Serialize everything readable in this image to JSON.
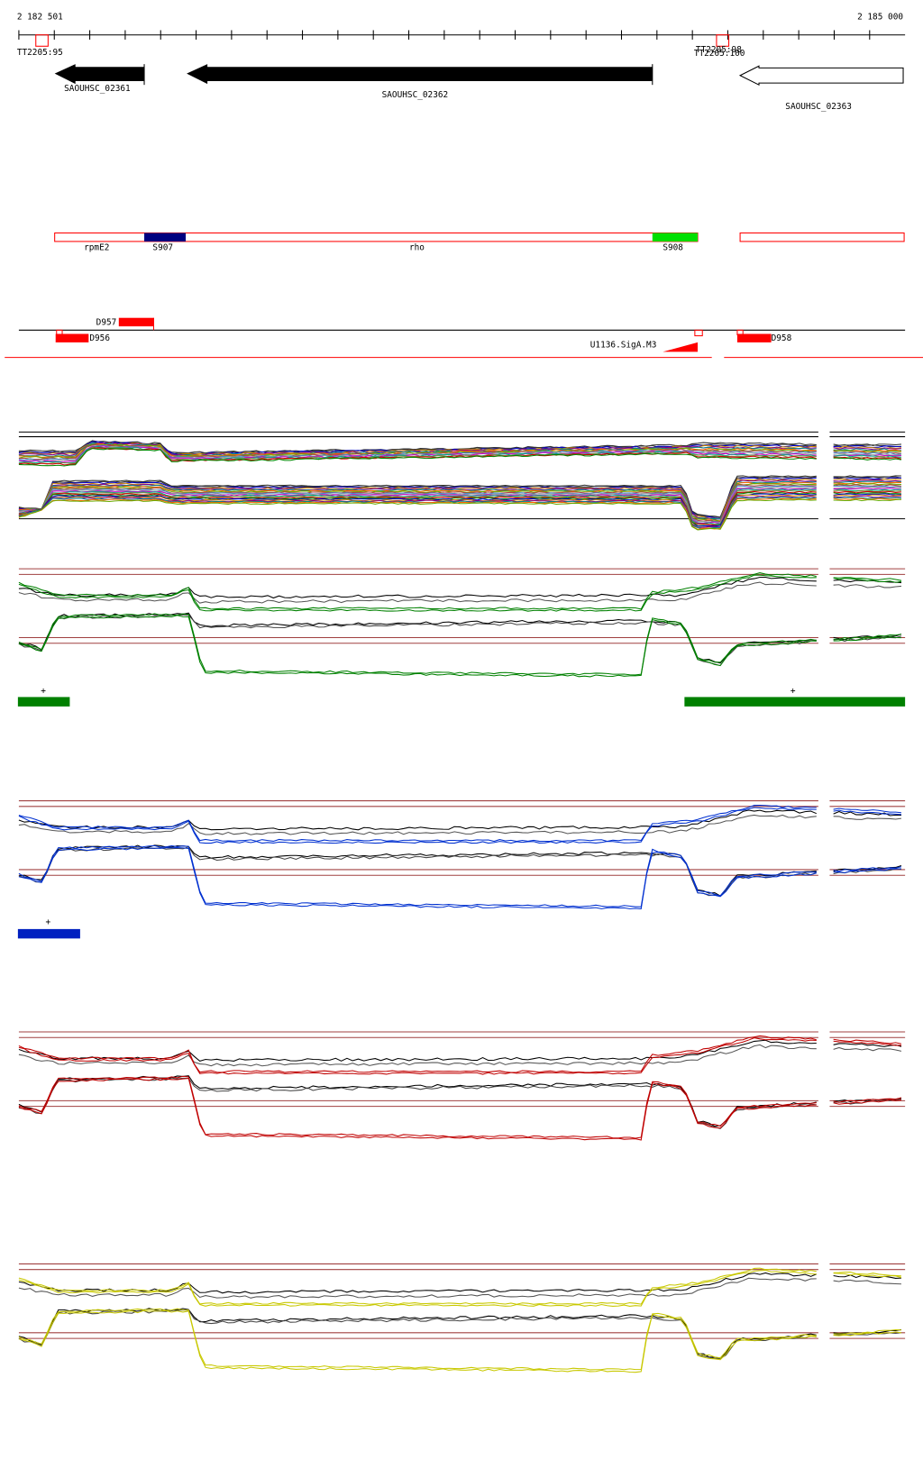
{
  "ruler": {
    "start": "2 182 501",
    "end": "2 185 000"
  },
  "terminators": [
    "TT2205:95",
    "TT2205:98",
    "TT2205:100"
  ],
  "genes": [
    "SAOUHSC_02361",
    "SAOUHSC_02362",
    "SAOUHSC_02363"
  ],
  "segments": [
    "rpmE2",
    "S907",
    "rho",
    "S908"
  ],
  "features": [
    "D957",
    "D956",
    "U1136.SigA.M3",
    "D958"
  ],
  "strand_marks": [
    "+",
    "+",
    "+"
  ]
}
